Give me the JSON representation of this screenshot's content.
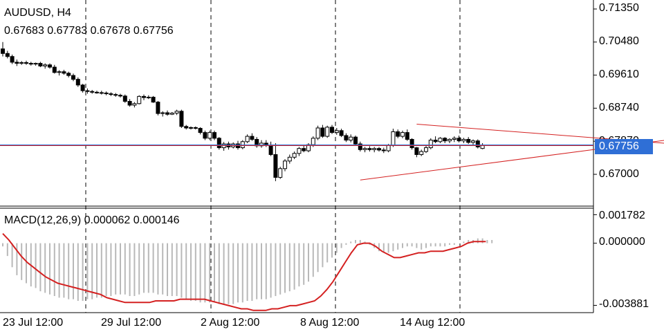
{
  "header": {
    "symbol_label": "AUDUSD, H4",
    "ohlc_label": "0.67683 0.67783 0.67678 0.67756"
  },
  "macd_header": {
    "label": "MACD(12,26,9) 0.000062 0.000146"
  },
  "colors": {
    "background": "#ffffff",
    "candle": "#000000",
    "macd_line": "#d42020",
    "histogram": "#b8b8b8",
    "trendline": "#d42020",
    "current_price_line": "#d42020",
    "bid_line": "#2f6fd6",
    "price_tag_bg": "#2f6fd6"
  },
  "chart_data": [
    {
      "type": "candlestick",
      "title": "AUDUSD, H4",
      "ylim": [
        0.662,
        0.7155
      ],
      "y_ticks": [
        "0.71350",
        "0.70480",
        "0.69610",
        "0.68740",
        "0.67870",
        "0.67000"
      ],
      "current_price": "0.67756",
      "x_ticks": [
        "23 Jul 12:00",
        "29 Jul 12:00",
        "2 Aug 12:00",
        "8 Aug 12:00",
        "14 Aug 12:00"
      ],
      "candles": [
        [
          0.703,
          0.7048,
          0.701,
          0.7018
        ],
        [
          0.7018,
          0.7025,
          0.7005,
          0.701
        ],
        [
          0.701,
          0.7015,
          0.699,
          0.6995
        ],
        [
          0.6995,
          0.7002,
          0.6985,
          0.6992
        ],
        [
          0.6992,
          0.6998,
          0.6988,
          0.6994
        ],
        [
          0.6994,
          0.6999,
          0.6988,
          0.6992
        ],
        [
          0.6992,
          0.6996,
          0.6986,
          0.699
        ],
        [
          0.699,
          0.6994,
          0.6986,
          0.6992
        ],
        [
          0.6992,
          0.6996,
          0.6982,
          0.6985
        ],
        [
          0.6985,
          0.6992,
          0.6978,
          0.6988
        ],
        [
          0.6988,
          0.6992,
          0.6978,
          0.6982
        ],
        [
          0.6982,
          0.6988,
          0.6965,
          0.6968
        ],
        [
          0.6968,
          0.6974,
          0.696,
          0.697
        ],
        [
          0.697,
          0.6975,
          0.6962,
          0.6966
        ],
        [
          0.6966,
          0.697,
          0.6955,
          0.696
        ],
        [
          0.696,
          0.6965,
          0.6945,
          0.695
        ],
        [
          0.695,
          0.6955,
          0.693,
          0.6935
        ],
        [
          0.6935,
          0.6938,
          0.6915,
          0.692
        ],
        [
          0.692,
          0.6926,
          0.6912,
          0.6918
        ],
        [
          0.6918,
          0.6922,
          0.6912,
          0.6916
        ],
        [
          0.6916,
          0.692,
          0.6912,
          0.6915
        ],
        [
          0.6915,
          0.692,
          0.691,
          0.6914
        ],
        [
          0.6914,
          0.6918,
          0.6908,
          0.6912
        ],
        [
          0.6912,
          0.6916,
          0.6906,
          0.691
        ],
        [
          0.691,
          0.6914,
          0.6904,
          0.6908
        ],
        [
          0.6908,
          0.6912,
          0.6902,
          0.6906
        ],
        [
          0.6906,
          0.691,
          0.6888,
          0.6892
        ],
        [
          0.6892,
          0.6898,
          0.6878,
          0.6882
        ],
        [
          0.6882,
          0.689,
          0.6876,
          0.6886
        ],
        [
          0.6886,
          0.6908,
          0.6884,
          0.6905
        ],
        [
          0.6905,
          0.691,
          0.6895,
          0.6902
        ],
        [
          0.6902,
          0.6908,
          0.6898,
          0.6903
        ],
        [
          0.6903,
          0.6906,
          0.6888,
          0.689
        ],
        [
          0.689,
          0.6893,
          0.6855,
          0.686
        ],
        [
          0.686,
          0.6866,
          0.6852,
          0.6862
        ],
        [
          0.6862,
          0.6868,
          0.6854,
          0.6858
        ],
        [
          0.6858,
          0.6864,
          0.6856,
          0.6861
        ],
        [
          0.6861,
          0.687,
          0.6856,
          0.6866
        ],
        [
          0.6866,
          0.687,
          0.6822,
          0.6826
        ],
        [
          0.6826,
          0.683,
          0.6818,
          0.6822
        ],
        [
          0.6822,
          0.6826,
          0.6818,
          0.6823
        ],
        [
          0.6823,
          0.6826,
          0.6818,
          0.6821
        ],
        [
          0.6821,
          0.6824,
          0.6805,
          0.681
        ],
        [
          0.681,
          0.6815,
          0.679,
          0.6795
        ],
        [
          0.6795,
          0.6815,
          0.679,
          0.681
        ],
        [
          0.681,
          0.6815,
          0.679,
          0.6795
        ],
        [
          0.6795,
          0.6798,
          0.6765,
          0.677
        ],
        [
          0.677,
          0.6785,
          0.6762,
          0.678
        ],
        [
          0.678,
          0.6786,
          0.6765,
          0.6772
        ],
        [
          0.6772,
          0.6784,
          0.6768,
          0.678
        ],
        [
          0.678,
          0.6788,
          0.6765,
          0.677
        ],
        [
          0.677,
          0.679,
          0.6766,
          0.6786
        ],
        [
          0.6786,
          0.6805,
          0.6782,
          0.68
        ],
        [
          0.68,
          0.6808,
          0.6788,
          0.6792
        ],
        [
          0.6792,
          0.6798,
          0.677,
          0.6775
        ],
        [
          0.6775,
          0.679,
          0.677,
          0.6782
        ],
        [
          0.6782,
          0.679,
          0.6772,
          0.6776
        ],
        [
          0.6776,
          0.6786,
          0.6748,
          0.6752
        ],
        [
          0.6752,
          0.6782,
          0.6682,
          0.6692
        ],
        [
          0.6692,
          0.672,
          0.6688,
          0.6715
        ],
        [
          0.6715,
          0.674,
          0.6708,
          0.6735
        ],
        [
          0.6735,
          0.6752,
          0.6728,
          0.6745
        ],
        [
          0.6745,
          0.676,
          0.674,
          0.6755
        ],
        [
          0.6755,
          0.6772,
          0.6748,
          0.6768
        ],
        [
          0.6768,
          0.6778,
          0.6758,
          0.6762
        ],
        [
          0.6762,
          0.6782,
          0.6758,
          0.6778
        ],
        [
          0.6778,
          0.68,
          0.6772,
          0.6795
        ],
        [
          0.6795,
          0.6828,
          0.679,
          0.6822
        ],
        [
          0.6822,
          0.683,
          0.6796,
          0.68
        ],
        [
          0.68,
          0.6828,
          0.6796,
          0.6824
        ],
        [
          0.6824,
          0.683,
          0.6806,
          0.681
        ],
        [
          0.681,
          0.6822,
          0.6804,
          0.6815
        ],
        [
          0.6815,
          0.682,
          0.6798,
          0.6802
        ],
        [
          0.6802,
          0.6808,
          0.6785,
          0.679
        ],
        [
          0.679,
          0.6805,
          0.6784,
          0.6798
        ],
        [
          0.6798,
          0.6802,
          0.6775,
          0.678
        ],
        [
          0.678,
          0.6786,
          0.676,
          0.6765
        ],
        [
          0.6765,
          0.6772,
          0.6758,
          0.6768
        ],
        [
          0.6768,
          0.6774,
          0.676,
          0.6765
        ],
        [
          0.6765,
          0.6772,
          0.6758,
          0.6768
        ],
        [
          0.6768,
          0.6772,
          0.676,
          0.6764
        ],
        [
          0.6764,
          0.677,
          0.6756,
          0.6762
        ],
        [
          0.6762,
          0.678,
          0.6758,
          0.6776
        ],
        [
          0.6776,
          0.682,
          0.6772,
          0.6812
        ],
        [
          0.6812,
          0.6818,
          0.6795,
          0.68
        ],
        [
          0.68,
          0.6815,
          0.6795,
          0.681
        ],
        [
          0.681,
          0.6818,
          0.6788,
          0.6792
        ],
        [
          0.6792,
          0.6795,
          0.6765,
          0.677
        ],
        [
          0.677,
          0.6772,
          0.6745,
          0.6752
        ],
        [
          0.6752,
          0.6765,
          0.6748,
          0.676
        ],
        [
          0.676,
          0.6775,
          0.6756,
          0.677
        ],
        [
          0.677,
          0.6795,
          0.6766,
          0.679
        ],
        [
          0.679,
          0.68,
          0.6782,
          0.6786
        ],
        [
          0.6786,
          0.6798,
          0.6782,
          0.6795
        ],
        [
          0.6795,
          0.6798,
          0.6782,
          0.6788
        ],
        [
          0.6788,
          0.6795,
          0.6782,
          0.6792
        ],
        [
          0.6792,
          0.68,
          0.6785,
          0.6795
        ],
        [
          0.6795,
          0.6802,
          0.6784,
          0.6788
        ],
        [
          0.6788,
          0.6796,
          0.6782,
          0.6792
        ],
        [
          0.6792,
          0.6798,
          0.678,
          0.6784
        ],
        [
          0.6784,
          0.6792,
          0.6778,
          0.6788
        ],
        [
          0.6788,
          0.6792,
          0.6768,
          0.6772
        ],
        [
          0.6768,
          0.6782,
          0.6766,
          0.6776
        ]
      ],
      "trendlines": [
        {
          "name": "upper",
          "start": [
            88,
            0.6832
          ],
          "end": [
            148,
            0.6775
          ]
        },
        {
          "name": "lower",
          "start": [
            76,
            0.6685
          ],
          "end": [
            146,
            0.6798
          ]
        }
      ]
    },
    {
      "type": "macd",
      "title": "MACD(12,26,9) 0.000062 0.000146",
      "ylim": [
        -0.00425,
        0.0021
      ],
      "y_ticks": [
        "0.001782",
        "0.000000",
        "-0.003881"
      ],
      "x_ticks": [
        "23 Jul 12:00",
        "29 Jul 12:00",
        "2 Aug 12:00",
        "8 Aug 12:00",
        "14 Aug 12:00"
      ],
      "histogram": [
        -0.0002,
        -0.0008,
        -0.0015,
        -0.002,
        -0.0023,
        -0.0025,
        -0.0027,
        -0.0028,
        -0.003,
        -0.0031,
        -0.0032,
        -0.0033,
        -0.0034,
        -0.0034,
        -0.0035,
        -0.0035,
        -0.0036,
        -0.0036,
        -0.0035,
        -0.0035,
        -0.0034,
        -0.0034,
        -0.0033,
        -0.0033,
        -0.0032,
        -0.0032,
        -0.0032,
        -0.0033,
        -0.0033,
        -0.0032,
        -0.0031,
        -0.0031,
        -0.0031,
        -0.0032,
        -0.0032,
        -0.0033,
        -0.0033,
        -0.0033,
        -0.0034,
        -0.0035,
        -0.0036,
        -0.0036,
        -0.0037,
        -0.0037,
        -0.0037,
        -0.0037,
        -0.0038,
        -0.0038,
        -0.0038,
        -0.0038,
        -0.0037,
        -0.0037,
        -0.0036,
        -0.0036,
        -0.0035,
        -0.0035,
        -0.0035,
        -0.0034,
        -0.0033,
        -0.0032,
        -0.0031,
        -0.003,
        -0.0029,
        -0.0027,
        -0.0026,
        -0.0024,
        -0.0021,
        -0.0018,
        -0.0015,
        -0.0012,
        -0.0009,
        -0.0006,
        -0.0003,
        -0.0001,
        0.0001,
        0.0002,
        0.0002,
        0.0001,
        -0.0001,
        -0.0003,
        -0.0005,
        -0.0006,
        -0.0006,
        -0.0005,
        -0.0004,
        -0.0003,
        -0.0002,
        -0.0002,
        -0.0003,
        -0.0004,
        -0.0003,
        -0.0002,
        -0.0002,
        -0.0002,
        -0.0002,
        -0.0001,
        -0.0001,
        0.0,
        0.0001,
        0.0002,
        0.0002,
        0.0003,
        0.0003,
        0.0002,
        0.0002
      ],
      "macd_line": [
        0.0006,
        0.0002,
        -0.0003,
        -0.0008,
        -0.0012,
        -0.0015,
        -0.0018,
        -0.0021,
        -0.0023,
        -0.0025,
        -0.0026,
        -0.0027,
        -0.0028,
        -0.0029,
        -0.003,
        -0.0031,
        -0.0032,
        -0.0034,
        -0.0035,
        -0.0036,
        -0.0037,
        -0.0037,
        -0.0037,
        -0.0037,
        -0.0037,
        -0.0036,
        -0.0036,
        -0.0036,
        -0.0036,
        -0.0035,
        -0.0035,
        -0.0035,
        -0.0035,
        -0.0035,
        -0.0036,
        -0.0037,
        -0.0038,
        -0.0039,
        -0.004,
        -0.0041,
        -0.0041,
        -0.0042,
        -0.0042,
        -0.0042,
        -0.0041,
        -0.0041,
        -0.004,
        -0.0039,
        -0.0039,
        -0.0038,
        -0.0037,
        -0.0036,
        -0.0033,
        -0.0029,
        -0.0024,
        -0.0018,
        -0.0012,
        -0.0006,
        -0.0001,
        0.0,
        0.0,
        -0.0002,
        -0.0005,
        -0.0007,
        -0.0009,
        -0.0009,
        -0.0008,
        -0.0007,
        -0.0006,
        -0.0006,
        -0.0005,
        -0.0005,
        -0.0005,
        -0.0004,
        -0.0003,
        -0.0002,
        0.0,
        0.0001,
        0.0001,
        0.0001
      ],
      "macd_line_start_index": 0,
      "macd_line_step": 1.3
    }
  ]
}
